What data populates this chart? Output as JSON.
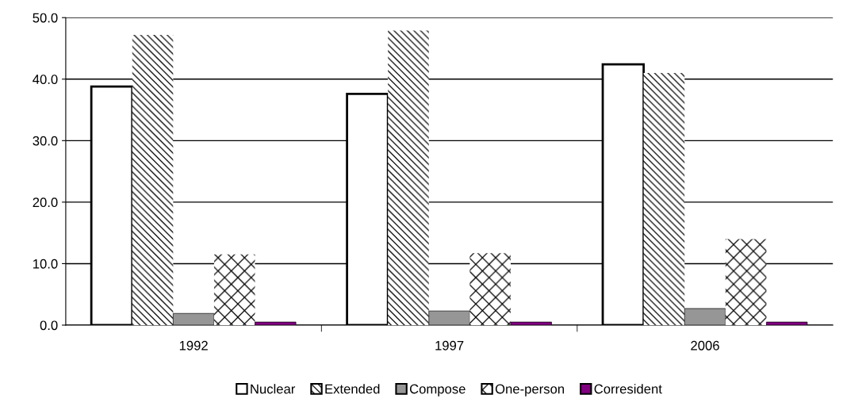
{
  "chart_data": {
    "type": "bar",
    "categories": [
      "1992",
      "1997",
      "2006"
    ],
    "series": [
      {
        "name": "Nuclear",
        "color": "#ffffff",
        "values": [
          38.8,
          37.6,
          42.4
        ]
      },
      {
        "name": "Extended",
        "color": "#ffffff",
        "values": [
          47.2,
          47.9,
          41.0
        ]
      },
      {
        "name": "Compose",
        "color": "#969696",
        "values": [
          1.9,
          2.3,
          2.7
        ]
      },
      {
        "name": "One-person",
        "color": "#ffffff",
        "values": [
          11.5,
          11.7,
          14.0
        ]
      },
      {
        "name": "Corresident",
        "color": "#800080",
        "values": [
          0.5,
          0.5,
          0.5
        ]
      }
    ],
    "ylim": [
      0,
      50
    ],
    "yticks": [
      {
        "value": 0,
        "label": "0.0"
      },
      {
        "value": 10,
        "label": "10.0"
      },
      {
        "value": 20,
        "label": "20.0"
      },
      {
        "value": 30,
        "label": "30.0"
      },
      {
        "value": 40,
        "label": "40.0"
      },
      {
        "value": 50,
        "label": "50.0"
      }
    ],
    "grid": "y",
    "legend": "bottom"
  }
}
